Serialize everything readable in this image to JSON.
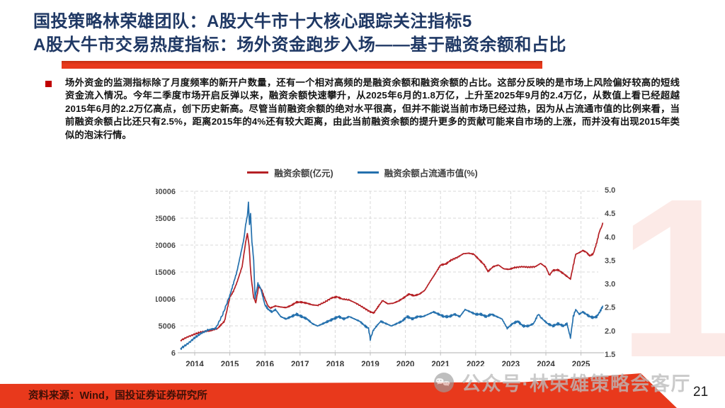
{
  "slide": {
    "title_line1": "国投策略林荣雄团队：A股大牛市十大核心跟踪关注指标5",
    "title_line2": "A股大牛市交易热度指标：场外资金跑步入场——基于融资余额和占比",
    "bullet_text": "场外资金的监测指标除了月度频率的新开户数量，还有一个相对高频的是融资余额和融资余额的占比。这部分反映的是市场上风险偏好较高的短线资金流入情况。今年二季度市场开启反弹以来，融资余额快速攀升，从2025年6月的1.8万亿，上升至2025年9月的2.4万亿，从数值上看已经超越2015年6月的2.2万亿高点，创下历史新高。尽管当前融资余额的绝对水平很高，但并不能说当前市场已经过热，因为从占流通市值的比例来看，当前融资余额占比还只有2.5%，距离2015年的4%还有较大距离，由此当前融资余额的提升更多的贡献可能来自市场的上涨，而并没有出现2015年类似的泡沫行情。",
    "footer_source": "资料来源：Wind，国投证券证券研究所",
    "page_number": "21",
    "watermark_text": "公众号·林荣雄策略会客厅",
    "decor_numeral": "1",
    "colors": {
      "accent_red": "#e8391c",
      "title_navy": "#1f3864",
      "bullet_red": "#c00000",
      "watermark_gray": "#bcbcbc",
      "axis_text": "#4d4d4d",
      "grid_line": "#d9d9d9",
      "axis_line": "#bfbfbf"
    }
  },
  "chart_data": {
    "type": "line",
    "grid": true,
    "legend_position": "top-center",
    "x_range": [
      2013.6,
      2025.62
    ],
    "x_ticks": [
      2014,
      2015,
      2016,
      2017,
      2018,
      2019,
      2020,
      2021,
      2022,
      2023,
      2024,
      2025
    ],
    "left_axis": {
      "label": "融资余额(亿元)",
      "ticks": [
        "30006",
        "25006",
        "20006",
        "15006",
        "10006",
        "5006",
        "6"
      ],
      "range": [
        6,
        30006
      ]
    },
    "right_axis": {
      "label": "融资余额占流通市值(%)",
      "ticks": [
        "5.0",
        "4.5",
        "4.0",
        "3.5",
        "3.0",
        "2.5",
        "2.0",
        "1.5"
      ],
      "range": [
        1.5,
        5.0
      ]
    },
    "series": [
      {
        "name": "融资余额(亿元)",
        "key": "margin-balance",
        "axis": "left",
        "color": "#b52025",
        "noise": 140,
        "points": [
          [
            2013.6,
            2300
          ],
          [
            2013.8,
            2950
          ],
          [
            2014.0,
            3465
          ],
          [
            2014.2,
            3900
          ],
          [
            2014.45,
            4100
          ],
          [
            2014.65,
            4500
          ],
          [
            2014.85,
            5900
          ],
          [
            2015.0,
            10300
          ],
          [
            2015.1,
            11400
          ],
          [
            2015.2,
            13000
          ],
          [
            2015.35,
            16000
          ],
          [
            2015.45,
            20500
          ],
          [
            2015.5,
            22200
          ],
          [
            2015.55,
            19800
          ],
          [
            2015.6,
            14500
          ],
          [
            2015.68,
            10200
          ],
          [
            2015.74,
            9300
          ],
          [
            2015.82,
            12300
          ],
          [
            2015.9,
            11800
          ],
          [
            2016.0,
            10000
          ],
          [
            2016.08,
            8800
          ],
          [
            2016.15,
            8300
          ],
          [
            2016.3,
            8700
          ],
          [
            2016.45,
            8500
          ],
          [
            2016.6,
            8400
          ],
          [
            2016.75,
            8800
          ],
          [
            2016.9,
            9400
          ],
          [
            2017.05,
            9400
          ],
          [
            2017.2,
            9200
          ],
          [
            2017.35,
            8900
          ],
          [
            2017.5,
            8800
          ],
          [
            2017.7,
            9400
          ],
          [
            2017.9,
            10200
          ],
          [
            2018.05,
            10400
          ],
          [
            2018.2,
            10000
          ],
          [
            2018.4,
            9800
          ],
          [
            2018.6,
            9200
          ],
          [
            2018.8,
            8400
          ],
          [
            2019.0,
            7600
          ],
          [
            2019.1,
            7400
          ],
          [
            2019.25,
            8800
          ],
          [
            2019.35,
            9700
          ],
          [
            2019.5,
            9100
          ],
          [
            2019.65,
            9200
          ],
          [
            2019.8,
            9600
          ],
          [
            2019.95,
            10200
          ],
          [
            2020.1,
            10900
          ],
          [
            2020.25,
            10600
          ],
          [
            2020.4,
            10900
          ],
          [
            2020.55,
            11600
          ],
          [
            2020.7,
            13200
          ],
          [
            2020.85,
            14700
          ],
          [
            2021.0,
            16300
          ],
          [
            2021.15,
            16500
          ],
          [
            2021.3,
            17200
          ],
          [
            2021.5,
            17800
          ],
          [
            2021.65,
            18400
          ],
          [
            2021.8,
            18500
          ],
          [
            2021.95,
            18300
          ],
          [
            2022.1,
            17300
          ],
          [
            2022.25,
            16300
          ],
          [
            2022.35,
            15100
          ],
          [
            2022.5,
            16000
          ],
          [
            2022.65,
            16300
          ],
          [
            2022.8,
            15600
          ],
          [
            2022.95,
            15500
          ],
          [
            2023.1,
            15800
          ],
          [
            2023.3,
            16000
          ],
          [
            2023.5,
            15900
          ],
          [
            2023.7,
            16000
          ],
          [
            2023.85,
            16600
          ],
          [
            2024.0,
            15900
          ],
          [
            2024.1,
            14400
          ],
          [
            2024.2,
            15300
          ],
          [
            2024.35,
            15400
          ],
          [
            2024.5,
            14700
          ],
          [
            2024.6,
            14200
          ],
          [
            2024.7,
            13700
          ],
          [
            2024.78,
            16200
          ],
          [
            2024.85,
            18300
          ],
          [
            2024.95,
            18600
          ],
          [
            2025.05,
            19000
          ],
          [
            2025.15,
            18700
          ],
          [
            2025.25,
            18000
          ],
          [
            2025.35,
            18400
          ],
          [
            2025.45,
            20500
          ],
          [
            2025.52,
            22400
          ],
          [
            2025.58,
            23300
          ],
          [
            2025.62,
            24100
          ]
        ]
      },
      {
        "name": "融资余额占流通市值(%)",
        "key": "margin-ratio-pct",
        "axis": "right",
        "color": "#2470ad",
        "noise": 0.026,
        "points": [
          [
            2013.6,
            1.62
          ],
          [
            2013.8,
            1.72
          ],
          [
            2014.0,
            1.85
          ],
          [
            2014.2,
            1.95
          ],
          [
            2014.4,
            2.02
          ],
          [
            2014.6,
            2.05
          ],
          [
            2014.8,
            2.35
          ],
          [
            2015.0,
            2.75
          ],
          [
            2015.1,
            3.0
          ],
          [
            2015.2,
            3.25
          ],
          [
            2015.3,
            3.6
          ],
          [
            2015.4,
            3.95
          ],
          [
            2015.45,
            4.25
          ],
          [
            2015.5,
            4.45
          ],
          [
            2015.53,
            4.72
          ],
          [
            2015.56,
            4.25
          ],
          [
            2015.59,
            4.5
          ],
          [
            2015.63,
            3.9
          ],
          [
            2015.68,
            3.5
          ],
          [
            2015.72,
            2.7
          ],
          [
            2015.8,
            3.0
          ],
          [
            2015.88,
            2.9
          ],
          [
            2016.0,
            2.55
          ],
          [
            2016.1,
            2.45
          ],
          [
            2016.2,
            2.4
          ],
          [
            2016.3,
            2.45
          ],
          [
            2016.45,
            2.3
          ],
          [
            2016.6,
            2.25
          ],
          [
            2016.75,
            2.3
          ],
          [
            2016.9,
            2.35
          ],
          [
            2017.05,
            2.3
          ],
          [
            2017.2,
            2.25
          ],
          [
            2017.35,
            2.15
          ],
          [
            2017.5,
            2.1
          ],
          [
            2017.65,
            2.15
          ],
          [
            2017.8,
            2.2
          ],
          [
            2017.95,
            2.25
          ],
          [
            2018.1,
            2.3
          ],
          [
            2018.25,
            2.25
          ],
          [
            2018.4,
            2.3
          ],
          [
            2018.55,
            2.25
          ],
          [
            2018.7,
            2.2
          ],
          [
            2018.85,
            2.1
          ],
          [
            2018.95,
            2.05
          ],
          [
            2019.0,
            1.82
          ],
          [
            2019.08,
            2.0
          ],
          [
            2019.18,
            2.1
          ],
          [
            2019.3,
            2.2
          ],
          [
            2019.45,
            2.15
          ],
          [
            2019.6,
            2.1
          ],
          [
            2019.75,
            2.15
          ],
          [
            2019.9,
            2.2
          ],
          [
            2020.05,
            2.3
          ],
          [
            2020.2,
            2.25
          ],
          [
            2020.35,
            2.3
          ],
          [
            2020.5,
            2.3
          ],
          [
            2020.65,
            2.35
          ],
          [
            2020.8,
            2.4
          ],
          [
            2020.95,
            2.35
          ],
          [
            2021.1,
            2.3
          ],
          [
            2021.25,
            2.3
          ],
          [
            2021.4,
            2.35
          ],
          [
            2021.55,
            2.3
          ],
          [
            2021.7,
            2.45
          ],
          [
            2021.85,
            2.4
          ],
          [
            2022.0,
            2.35
          ],
          [
            2022.15,
            2.35
          ],
          [
            2022.3,
            2.3
          ],
          [
            2022.45,
            2.35
          ],
          [
            2022.6,
            2.3
          ],
          [
            2022.75,
            2.25
          ],
          [
            2022.9,
            2.05
          ],
          [
            2023.05,
            2.15
          ],
          [
            2023.2,
            2.2
          ],
          [
            2023.35,
            2.1
          ],
          [
            2023.5,
            2.1
          ],
          [
            2023.65,
            2.15
          ],
          [
            2023.78,
            2.35
          ],
          [
            2023.9,
            2.25
          ],
          [
            2024.05,
            2.15
          ],
          [
            2024.2,
            2.1
          ],
          [
            2024.35,
            2.15
          ],
          [
            2024.5,
            2.1
          ],
          [
            2024.6,
            2.15
          ],
          [
            2024.7,
            1.85
          ],
          [
            2024.78,
            2.3
          ],
          [
            2024.85,
            2.45
          ],
          [
            2024.95,
            2.35
          ],
          [
            2025.05,
            2.4
          ],
          [
            2025.15,
            2.35
          ],
          [
            2025.25,
            2.3
          ],
          [
            2025.35,
            2.28
          ],
          [
            2025.45,
            2.3
          ],
          [
            2025.55,
            2.42
          ],
          [
            2025.62,
            2.52
          ]
        ]
      }
    ]
  }
}
